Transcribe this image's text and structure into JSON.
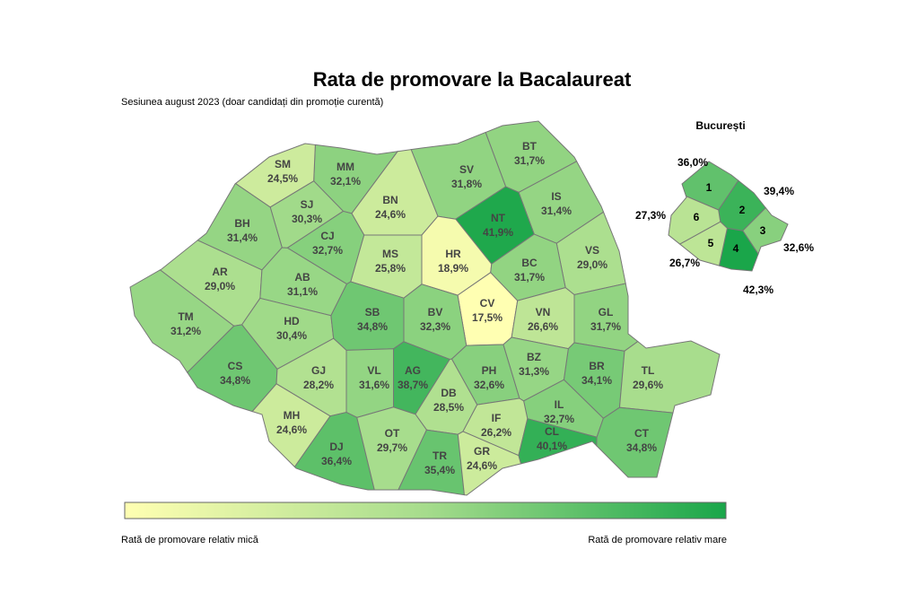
{
  "title": "Rata de promovare la Bacalaureat",
  "subtitle": "Sesiunea august 2023 (doar candidați din promoție curentă)",
  "scale_colors": [
    "#ffffb2",
    "#a6dc8c",
    "#1aa64a"
  ],
  "legend": {
    "low": "Rată de promovare relativ mică",
    "high": "Rată de promovare relativ mare"
  },
  "counties": [
    {
      "code": "BT",
      "rate": 31.7,
      "label": "31,7%"
    },
    {
      "code": "SV",
      "rate": 31.8,
      "label": "31,8%"
    },
    {
      "code": "MM",
      "rate": 32.1,
      "label": "32,1%"
    },
    {
      "code": "SM",
      "rate": 24.5,
      "label": "24,5%"
    },
    {
      "code": "IS",
      "rate": 31.4,
      "label": "31,4%"
    },
    {
      "code": "NT",
      "rate": 41.9,
      "label": "41,9%"
    },
    {
      "code": "BN",
      "rate": 24.6,
      "label": "24,6%"
    },
    {
      "code": "SJ",
      "rate": 30.3,
      "label": "30,3%"
    },
    {
      "code": "BH",
      "rate": 31.4,
      "label": "31,4%"
    },
    {
      "code": "CJ",
      "rate": 32.7,
      "label": "32,7%"
    },
    {
      "code": "HR",
      "rate": 18.9,
      "label": "18,9%"
    },
    {
      "code": "VS",
      "rate": 29.0,
      "label": "29,0%"
    },
    {
      "code": "BC",
      "rate": 31.7,
      "label": "31,7%"
    },
    {
      "code": "MS",
      "rate": 25.8,
      "label": "25,8%"
    },
    {
      "code": "AR",
      "rate": 29.0,
      "label": "29,0%"
    },
    {
      "code": "AB",
      "rate": 31.1,
      "label": "31,1%"
    },
    {
      "code": "CV",
      "rate": 17.5,
      "label": "17,5%"
    },
    {
      "code": "VN",
      "rate": 26.6,
      "label": "26,6%"
    },
    {
      "code": "GL",
      "rate": 31.7,
      "label": "31,7%"
    },
    {
      "code": "TM",
      "rate": 31.2,
      "label": "31,2%"
    },
    {
      "code": "HD",
      "rate": 30.4,
      "label": "30,4%"
    },
    {
      "code": "SB",
      "rate": 34.8,
      "label": "34,8%"
    },
    {
      "code": "BV",
      "rate": 32.3,
      "label": "32,3%"
    },
    {
      "code": "BR",
      "rate": 34.1,
      "label": "34,1%"
    },
    {
      "code": "BZ",
      "rate": 31.3,
      "label": "31,3%"
    },
    {
      "code": "TL",
      "rate": 29.6,
      "label": "29,6%"
    },
    {
      "code": "CS",
      "rate": 34.8,
      "label": "34,8%"
    },
    {
      "code": "GJ",
      "rate": 28.2,
      "label": "28,2%"
    },
    {
      "code": "VL",
      "rate": 31.6,
      "label": "31,6%"
    },
    {
      "code": "AG",
      "rate": 38.7,
      "label": "38,7%"
    },
    {
      "code": "PH",
      "rate": 32.6,
      "label": "32,6%"
    },
    {
      "code": "DB",
      "rate": 28.5,
      "label": "28,5%"
    },
    {
      "code": "IL",
      "rate": 32.7,
      "label": "32,7%"
    },
    {
      "code": "MH",
      "rate": 24.6,
      "label": "24,6%"
    },
    {
      "code": "IF",
      "rate": 26.2,
      "label": "26,2%"
    },
    {
      "code": "CL",
      "rate": 40.1,
      "label": "40,1%"
    },
    {
      "code": "CT",
      "rate": 34.8,
      "label": "34,8%"
    },
    {
      "code": "DJ",
      "rate": 36.4,
      "label": "36,4%"
    },
    {
      "code": "OT",
      "rate": 29.7,
      "label": "29,7%"
    },
    {
      "code": "TR",
      "rate": 35.4,
      "label": "35,4%"
    },
    {
      "code": "GR",
      "rate": 24.6,
      "label": "24,6%"
    }
  ],
  "bucharest": {
    "title": "București",
    "sectors": [
      {
        "name": "1",
        "rate": 36.0,
        "label": "36,0%"
      },
      {
        "name": "2",
        "rate": 39.4,
        "label": "39,4%"
      },
      {
        "name": "3",
        "rate": 32.6,
        "label": "32,6%"
      },
      {
        "name": "4",
        "rate": 42.3,
        "label": "42,3%"
      },
      {
        "name": "5",
        "rate": 26.7,
        "label": "26,7%"
      },
      {
        "name": "6",
        "rate": 27.3,
        "label": "27,3%"
      }
    ]
  }
}
